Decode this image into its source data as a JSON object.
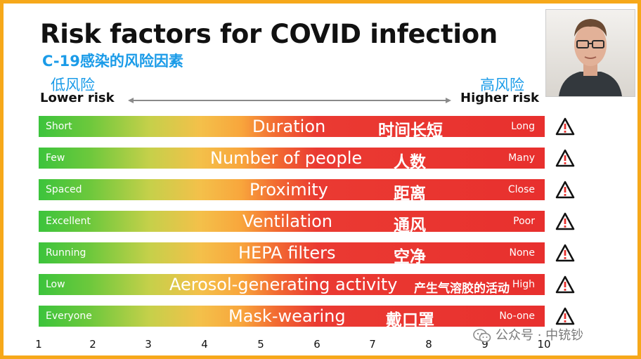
{
  "title": "Risk factors for COVID infection",
  "subtitle_cn": "C-19感染的风险因素",
  "scale": {
    "low_cn": "低风险",
    "high_cn": "高风险",
    "low_en": "Lower risk",
    "high_en": "Higher risk"
  },
  "rows": [
    {
      "left": "Short",
      "center": "Duration",
      "cn": "时间长短",
      "right": "Long"
    },
    {
      "left": "Few",
      "center": "Number of people",
      "cn": "人数",
      "right": "Many"
    },
    {
      "left": "Spaced",
      "center": "Proximity",
      "cn": "距离",
      "right": "Close"
    },
    {
      "left": "Excellent",
      "center": "Ventilation",
      "cn": "通风",
      "right": "Poor"
    },
    {
      "left": "Running",
      "center": "HEPA filters",
      "cn": "空净",
      "right": "None"
    },
    {
      "left": "Low",
      "center": "Aerosol-generating activity",
      "cn": "产生气溶胶的活动",
      "right": "High"
    },
    {
      "left": "Everyone",
      "center": "Mask-wearing",
      "cn": "戴口罩",
      "right": "No-one"
    }
  ],
  "axis_ticks": [
    "1",
    "2",
    "3",
    "4",
    "5",
    "6",
    "7",
    "8",
    "9",
    "10"
  ],
  "watermark": "公众号 · 中铳钞",
  "icons": {
    "warning": "warning-triangle-icon",
    "watermark": "wechat-icon",
    "presenter": "presenter-video"
  },
  "colors": {
    "frame": "#f6a81a",
    "accent": "#1a9be8",
    "bar_start": "#3cc43c",
    "bar_end": "#e8302e"
  }
}
